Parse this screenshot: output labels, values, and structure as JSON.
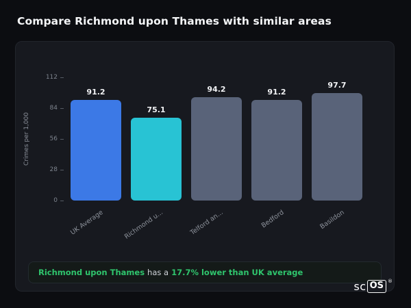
{
  "page": {
    "title": "Compare Richmond upon Thames with similar areas"
  },
  "chart_data": {
    "type": "bar",
    "categories": [
      "UK Average",
      "Richmond u...",
      "Telford an...",
      "Bedford",
      "Basildon"
    ],
    "values": [
      91.2,
      75.1,
      94.2,
      91.2,
      97.7
    ],
    "value_labels": [
      "91.2",
      "75.1",
      "94.2",
      "91.2",
      "97.7"
    ],
    "bar_colors": [
      "#3c79e6",
      "#28c3d4",
      "#596379",
      "#596379",
      "#596379"
    ],
    "title": "",
    "xlabel": "",
    "ylabel": "Crimes per 1,000",
    "yticks": [
      112,
      84,
      56,
      28,
      0
    ],
    "ylim": [
      0,
      112
    ],
    "grid": false,
    "legend": false
  },
  "note": {
    "area": "Richmond upon Thames",
    "middle": "has a",
    "stat": "17.7% lower than UK average",
    "accent": "#2fc56d"
  },
  "logo": {
    "prefix": "sc",
    "box": "OS",
    "reg": "®"
  }
}
